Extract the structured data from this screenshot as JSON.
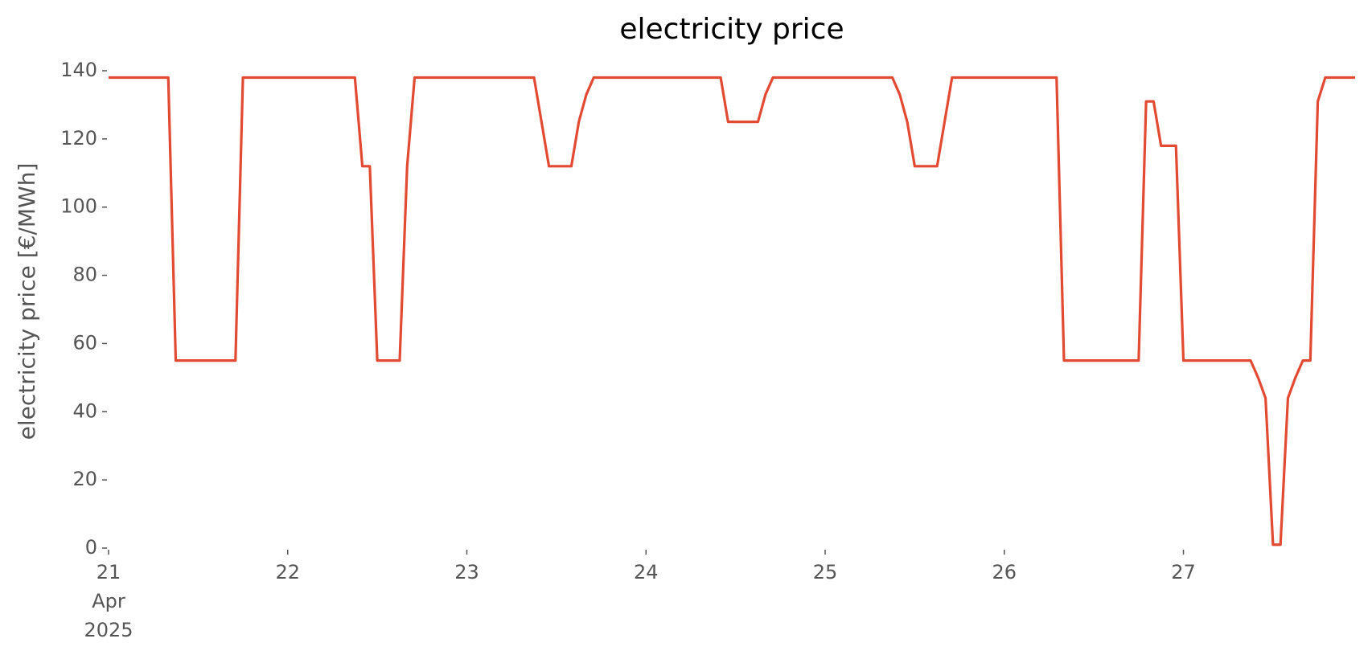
{
  "chart_data": {
    "type": "line",
    "title": "electricity price",
    "ylabel": "electricity price [€/MWh]",
    "x": [
      21,
      21.0417,
      21.0833,
      21.125,
      21.1667,
      21.2083,
      21.25,
      21.2917,
      21.3333,
      21.375,
      21.4167,
      21.4583,
      21.5,
      21.5417,
      21.5833,
      21.625,
      21.6667,
      21.7083,
      21.75,
      21.7917,
      21.8333,
      21.875,
      21.9167,
      21.9583,
      22,
      22.0417,
      22.0833,
      22.125,
      22.1667,
      22.2083,
      22.25,
      22.2917,
      22.3333,
      22.375,
      22.4167,
      22.4583,
      22.5,
      22.5417,
      22.5833,
      22.625,
      22.6667,
      22.7083,
      22.75,
      22.7917,
      22.8333,
      22.875,
      22.9167,
      22.9583,
      23,
      23.0417,
      23.0833,
      23.125,
      23.1667,
      23.2083,
      23.25,
      23.2917,
      23.3333,
      23.375,
      23.4167,
      23.4583,
      23.5,
      23.5417,
      23.5833,
      23.625,
      23.6667,
      23.7083,
      23.75,
      23.7917,
      23.8333,
      23.875,
      23.9167,
      23.9583,
      24,
      24.0417,
      24.0833,
      24.125,
      24.1667,
      24.2083,
      24.25,
      24.2917,
      24.3333,
      24.375,
      24.4167,
      24.4583,
      24.5,
      24.5417,
      24.5833,
      24.625,
      24.6667,
      24.7083,
      24.75,
      24.7917,
      24.8333,
      24.875,
      24.9167,
      24.9583,
      25,
      25.0417,
      25.0833,
      25.125,
      25.1667,
      25.2083,
      25.25,
      25.2917,
      25.3333,
      25.375,
      25.4167,
      25.4583,
      25.5,
      25.5417,
      25.5833,
      25.625,
      25.6667,
      25.7083,
      25.75,
      25.7917,
      25.8333,
      25.875,
      25.9167,
      25.9583,
      26,
      26.0417,
      26.0833,
      26.125,
      26.1667,
      26.2083,
      26.25,
      26.2917,
      26.3333,
      26.375,
      26.4167,
      26.4583,
      26.5,
      26.5417,
      26.5833,
      26.625,
      26.6667,
      26.7083,
      26.75,
      26.7917,
      26.8333,
      26.875,
      26.9167,
      26.9583,
      27,
      27.0417,
      27.0833,
      27.125,
      27.1667,
      27.2083,
      27.25,
      27.2917,
      27.3333,
      27.375,
      27.4167,
      27.4583,
      27.5,
      27.5417,
      27.5833,
      27.625,
      27.6667,
      27.7083,
      27.75,
      27.7917,
      27.8333,
      27.875,
      27.9167,
      27.9583
    ],
    "series": [
      {
        "name": "electricity price",
        "color": "#e24a33",
        "values": [
          138,
          138,
          138,
          138,
          138,
          138,
          138,
          138,
          138,
          55,
          55,
          55,
          55,
          55,
          55,
          55,
          55,
          55,
          138,
          138,
          138,
          138,
          138,
          138,
          138,
          138,
          138,
          138,
          138,
          138,
          138,
          138,
          138,
          138,
          112,
          112,
          55,
          55,
          55,
          55,
          112,
          138,
          138,
          138,
          138,
          138,
          138,
          138,
          138,
          138,
          138,
          138,
          138,
          138,
          138,
          138,
          138,
          138,
          125,
          112,
          112,
          112,
          112,
          125,
          133,
          138,
          138,
          138,
          138,
          138,
          138,
          138,
          138,
          138,
          138,
          138,
          138,
          138,
          138,
          138,
          138,
          138,
          138,
          125,
          125,
          125,
          125,
          125,
          133,
          138,
          138,
          138,
          138,
          138,
          138,
          138,
          138,
          138,
          138,
          138,
          138,
          138,
          138,
          138,
          138,
          138,
          133,
          125,
          112,
          112,
          112,
          112,
          125,
          138,
          138,
          138,
          138,
          138,
          138,
          138,
          138,
          138,
          138,
          138,
          138,
          138,
          138,
          138,
          55,
          55,
          55,
          55,
          55,
          55,
          55,
          55,
          55,
          55,
          55,
          131,
          131,
          118,
          118,
          118,
          55,
          55,
          55,
          55,
          55,
          55,
          55,
          55,
          55,
          55,
          50,
          44,
          1,
          1,
          44,
          50,
          55,
          55,
          131,
          138,
          138,
          138,
          138,
          138
        ]
      }
    ],
    "xlim": [
      21,
      27.9583
    ],
    "xticks": [
      {
        "value": 21,
        "label": "21\nApr\n2025"
      },
      22,
      23,
      24,
      25,
      26,
      27
    ],
    "ylim": [
      0,
      140
    ],
    "yticks": [
      0,
      20,
      40,
      60,
      80,
      100,
      120,
      140
    ],
    "grid": false
  }
}
